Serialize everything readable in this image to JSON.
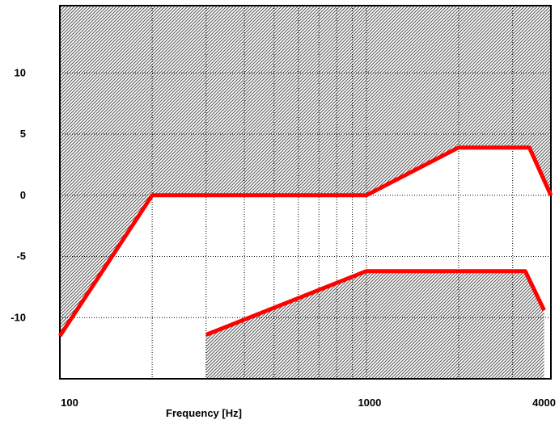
{
  "chart_data": {
    "type": "line",
    "x_scale": "log",
    "xlim": [
      100,
      4000
    ],
    "ylim": [
      -15,
      15.5
    ],
    "xlabel": "Frequency [Hz]",
    "ylabel": "",
    "x_tick_labels": [
      {
        "value": 100,
        "label": "100"
      },
      {
        "value": 1000,
        "label": "1000"
      },
      {
        "value": 4000,
        "label": "4000"
      }
    ],
    "y_tick_labels": [
      {
        "value": 10,
        "label": "10"
      },
      {
        "value": 5,
        "label": "5"
      },
      {
        "value": 0,
        "label": "0"
      },
      {
        "value": -5,
        "label": "-5"
      },
      {
        "value": -10,
        "label": "-10"
      }
    ],
    "x_gridlines": [
      100,
      200,
      300,
      400,
      500,
      600,
      700,
      800,
      900,
      1000,
      2000,
      3000,
      4000
    ],
    "y_gridlines": [
      10,
      5,
      0,
      -5,
      -10
    ],
    "grid": true,
    "shading": "diagonal hatch outside the tolerance band",
    "line_color": "#ff0000",
    "series": [
      {
        "points": [
          [
            100,
            -11.5
          ],
          [
            200,
            0
          ],
          [
            1000,
            0
          ],
          [
            2000,
            3.9
          ],
          [
            3400,
            3.9
          ],
          [
            4000,
            0
          ]
        ]
      },
      {
        "points": [
          [
            300,
            -11.4
          ],
          [
            1000,
            -6.2
          ],
          [
            3300,
            -6.2
          ],
          [
            3800,
            -9.4
          ]
        ]
      }
    ]
  }
}
